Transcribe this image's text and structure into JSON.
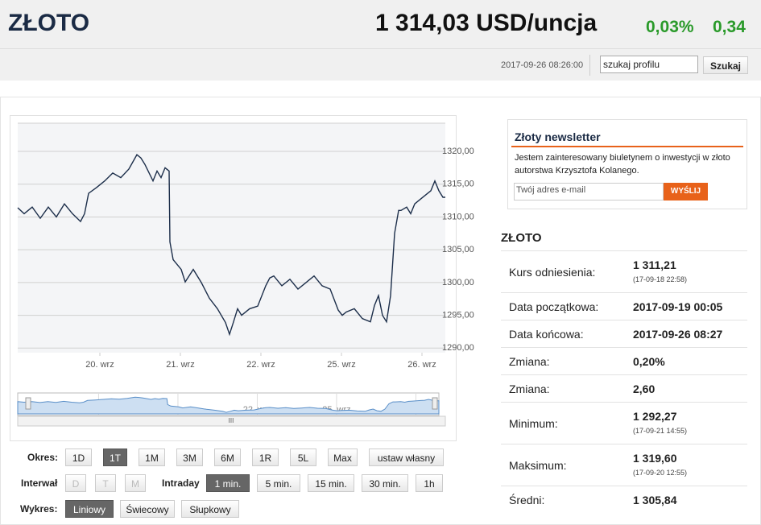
{
  "header": {
    "title": "ZŁOTO",
    "price": "1 314,03 USD/uncja",
    "change_pct": "0,03%",
    "change_abs": "0,34",
    "timestamp": "2017-09-26 08:26:00",
    "search_placeholder": "szukaj profilu",
    "search_button": "Szukaj"
  },
  "chart": {
    "type": "line",
    "color": "#1c2e4a",
    "grid": true,
    "x": [
      -0.02,
      0.06,
      0.16,
      0.26,
      0.36,
      0.46,
      0.56,
      0.66,
      0.76,
      0.81,
      0.86,
      0.96,
      1.06,
      1.16,
      1.26,
      1.36,
      1.46,
      1.51,
      1.56,
      1.66,
      1.71,
      1.76,
      1.81,
      1.86,
      1.87,
      1.91,
      2.01,
      2.06,
      2.16,
      2.26,
      2.36,
      2.46,
      2.56,
      2.61,
      2.66,
      2.71,
      2.76,
      2.86,
      2.96,
      3.06,
      3.11,
      3.16,
      3.26,
      3.36,
      3.46,
      3.56,
      3.66,
      3.76,
      3.86,
      3.96,
      4.01,
      4.06,
      4.16,
      4.26,
      4.36,
      4.41,
      4.46,
      4.51,
      4.56,
      4.61,
      4.66,
      4.71,
      4.74,
      4.81,
      4.86,
      4.91,
      4.96,
      5.06,
      5.11,
      5.16,
      5.21,
      5.26,
      5.29
    ],
    "values": [
      1311.4,
      1310.5,
      1311.5,
      1309.8,
      1311.5,
      1310,
      1312,
      1310.5,
      1309.3,
      1310.5,
      1313.6,
      1314.5,
      1315.5,
      1316.7,
      1316,
      1317.3,
      1319.5,
      1319,
      1318,
      1315.5,
      1317,
      1316,
      1317.5,
      1317,
      1306.2,
      1303.5,
      1302,
      1300.1,
      1302,
      1300,
      1297.6,
      1296,
      1293.9,
      1292.1,
      1294,
      1296,
      1295,
      1296,
      1296.4,
      1299.5,
      1300.7,
      1301,
      1299.5,
      1300.5,
      1299,
      1300,
      1301,
      1299.5,
      1299,
      1295.8,
      1295,
      1295.5,
      1296,
      1294.5,
      1294,
      1296.5,
      1298,
      1295,
      1294,
      1298,
      1307.5,
      1311,
      1311,
      1311.5,
      1310.5,
      1312,
      1312.5,
      1313.5,
      1314,
      1315.5,
      1314,
      1313,
      1313
    ],
    "xlim": [
      -0.02,
      5.29
    ],
    "xticks": [
      {
        "value": 1,
        "label": "20. wrz"
      },
      {
        "value": 2,
        "label": "21. wrz"
      },
      {
        "value": 3,
        "label": "22. wrz"
      },
      {
        "value": 4,
        "label": "25. wrz"
      },
      {
        "value": 5,
        "label": "26. wrz"
      }
    ],
    "ylim": [
      1289.3,
      1324.3
    ],
    "yticks": [
      {
        "value": 1290,
        "label": "1290,00"
      },
      {
        "value": 1295,
        "label": "1295,00"
      },
      {
        "value": 1300,
        "label": "1300,00"
      },
      {
        "value": 1305,
        "label": "1305,00"
      },
      {
        "value": 1310,
        "label": "1310,00"
      },
      {
        "value": 1315,
        "label": "1315,00"
      },
      {
        "value": 1320,
        "label": "1320,00"
      }
    ],
    "scroll_label": "III"
  },
  "controls": {
    "period": {
      "label": "Okres:",
      "buttons": [
        "1D",
        "1T",
        "1M",
        "3M",
        "6M",
        "1R",
        "5L",
        "Max",
        "ustaw własny"
      ],
      "active": 1
    },
    "interval": {
      "label": "Interwał",
      "buttons": [
        "D",
        "T",
        "M"
      ],
      "intraday_label": "Intraday",
      "intraday_buttons": [
        "1 min.",
        "5 min.",
        "15 min.",
        "30 min.",
        "1h"
      ],
      "active": 0
    },
    "chart_type": {
      "label": "Wykres:",
      "buttons": [
        "Liniowy",
        "Świecowy",
        "Słupkowy"
      ],
      "active": 0
    }
  },
  "newsletter": {
    "title": "Złoty newsletter",
    "text": "Jestem zainteresowany biuletynem o inwestycji w złoto autorstwa Krzysztofa Kolanego.",
    "email_placeholder": "Twój adres e-mail",
    "button": "WYŚLIJ"
  },
  "table": {
    "title": "ZŁOTO",
    "rows": [
      {
        "label": "Kurs odniesienia:",
        "value": "1 311,21",
        "sub": "(17-09-18 22:58)"
      },
      {
        "label": "Data początkowa:",
        "value": "2017-09-19 00:05"
      },
      {
        "label": "Data końcowa:",
        "value": "2017-09-26 08:27"
      },
      {
        "label": "Zmiana:",
        "value": "0,20%"
      },
      {
        "label": "Zmiana:",
        "value": "2,60"
      },
      {
        "label": "Minimum:",
        "value": "1 292,27",
        "sub": "(17-09-21 14:55)"
      },
      {
        "label": "Maksimum:",
        "value": "1 319,60",
        "sub": "(17-09-20 12:55)"
      },
      {
        "label": "Średni:",
        "value": "1 305,84"
      }
    ]
  }
}
